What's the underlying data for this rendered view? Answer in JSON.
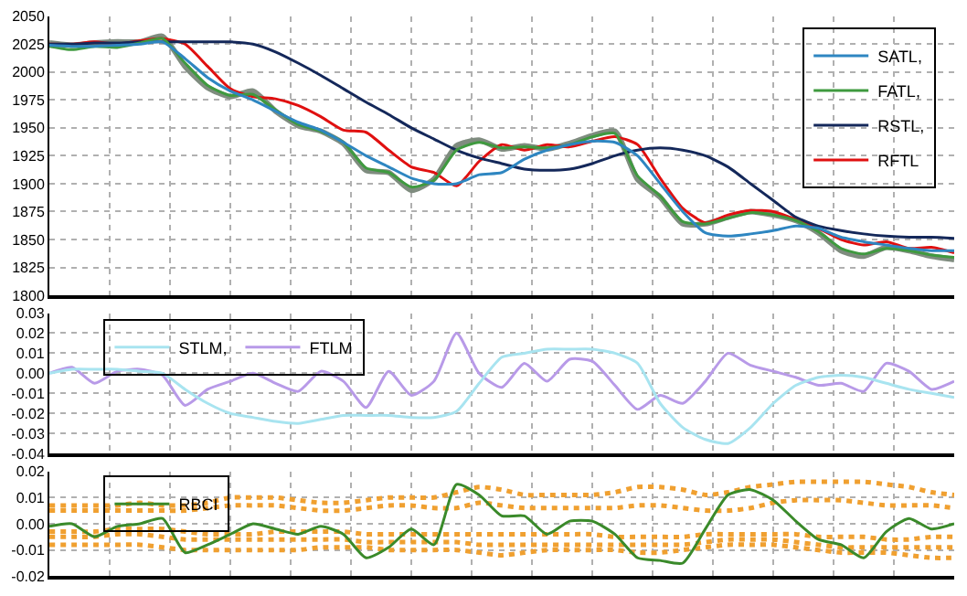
{
  "chart_data": [
    {
      "type": "line",
      "categories": [
        null,
        null,
        null,
        null,
        null,
        null,
        null,
        null,
        null,
        null,
        null,
        null,
        null,
        null,
        null,
        null,
        null,
        null,
        null,
        null,
        null,
        null,
        null,
        null,
        null,
        null,
        null,
        null,
        null,
        null,
        null,
        null,
        null,
        null,
        null,
        null,
        null,
        null,
        null,
        null,
        null
      ],
      "ylim": [
        1800,
        2050
      ],
      "yticks": [
        1800,
        1825,
        1850,
        1875,
        1900,
        1925,
        1950,
        1975,
        2000,
        2025,
        2050
      ],
      "grid": true,
      "legend": "top right",
      "tick_labels": "y",
      "series": [
        {
          "color": "#7f8c7f",
          "values": [
            2026,
            2024,
            2026,
            2027,
            2027,
            2032,
            2005,
            1986,
            1978,
            1983,
            1965,
            1952,
            1947,
            1936,
            1912,
            1910,
            1894,
            1904,
            1934,
            1939,
            1931,
            1934,
            1931,
            1936,
            1943,
            1947,
            1904,
            1888,
            1864,
            1864,
            1870,
            1875,
            1872,
            1867,
            1856,
            1840,
            1835,
            1843,
            1840,
            1835,
            1832
          ]
        },
        {
          "name": "SATL,",
          "color": "#2e86c1",
          "values": [
            2024,
            2023,
            2023,
            2024,
            2025,
            2027,
            2012,
            1995,
            1983,
            1975,
            1965,
            1955,
            1948,
            1937,
            1925,
            1915,
            1905,
            1900,
            1900,
            1908,
            1910,
            1922,
            1930,
            1935,
            1938,
            1937,
            1925,
            1900,
            1875,
            1856,
            1853,
            1855,
            1858,
            1862,
            1860,
            1852,
            1848,
            1845,
            1842,
            1840,
            1840
          ]
        },
        {
          "name": "FATL,",
          "color": "#3f9a3f",
          "values": [
            2023,
            2020,
            2023,
            2022,
            2026,
            2030,
            2008,
            1988,
            1979,
            1980,
            1966,
            1953,
            1947,
            1937,
            1914,
            1910,
            1897,
            1903,
            1930,
            1937,
            1932,
            1933,
            1932,
            1935,
            1942,
            1945,
            1907,
            1889,
            1866,
            1864,
            1869,
            1874,
            1872,
            1867,
            1857,
            1842,
            1837,
            1842,
            1840,
            1836,
            1834
          ]
        },
        {
          "name": "RSTL,",
          "color": "#14285a",
          "values": [
            2025,
            2025,
            2026,
            2026,
            2027,
            2027,
            2027,
            2027,
            2027,
            2025,
            2018,
            2008,
            1997,
            1985,
            1973,
            1962,
            1950,
            1940,
            1930,
            1923,
            1918,
            1913,
            1912,
            1913,
            1918,
            1925,
            1930,
            1932,
            1930,
            1925,
            1915,
            1900,
            1885,
            1870,
            1862,
            1858,
            1855,
            1853,
            1852,
            1852,
            1851
          ]
        },
        {
          "name": "RFTL",
          "color": "#e01010",
          "values": [
            2025,
            2025,
            2027,
            2025,
            2028,
            2030,
            2025,
            2005,
            1985,
            1978,
            1976,
            1970,
            1960,
            1948,
            1946,
            1930,
            1915,
            1910,
            1898,
            1920,
            1935,
            1930,
            1935,
            1933,
            1938,
            1942,
            1935,
            1905,
            1878,
            1865,
            1872,
            1876,
            1875,
            1868,
            1860,
            1850,
            1845,
            1848,
            1842,
            1843,
            1838
          ]
        }
      ]
    },
    {
      "type": "line",
      "categories": [
        null,
        null,
        null,
        null,
        null,
        null,
        null,
        null,
        null,
        null,
        null,
        null,
        null,
        null,
        null,
        null,
        null,
        null,
        null,
        null,
        null,
        null,
        null,
        null,
        null,
        null,
        null,
        null,
        null,
        null,
        null,
        null,
        null,
        null,
        null,
        null,
        null,
        null,
        null,
        null,
        null
      ],
      "ylim": [
        -0.04,
        0.03
      ],
      "yticks": [
        {
          "value": -0.04,
          "label": "-0.04"
        },
        {
          "value": -0.03,
          "label": "-0.03"
        },
        {
          "value": -0.02,
          "label": "-0.02"
        },
        {
          "value": -0.01,
          "label": "-0.01"
        },
        {
          "value": 0,
          "label": "0.00"
        },
        {
          "value": 0.01,
          "label": "0.01"
        },
        {
          "value": 0.02,
          "label": "0.02"
        },
        {
          "value": 0.03,
          "label": "0.03"
        }
      ],
      "grid": true,
      "legend": "top left",
      "tick_labels": "y",
      "series": [
        {
          "name": "STLM,",
          "color": "#a8e4f0",
          "values": [
            0.0,
            0.002,
            0.002,
            0.002,
            0.001,
            0.0,
            -0.008,
            -0.015,
            -0.02,
            -0.022,
            -0.024,
            -0.025,
            -0.023,
            -0.021,
            -0.021,
            -0.021,
            -0.022,
            -0.022,
            -0.019,
            -0.005,
            0.008,
            0.01,
            0.012,
            0.012,
            0.012,
            0.01,
            0.005,
            -0.015,
            -0.027,
            -0.033,
            -0.035,
            -0.027,
            -0.015,
            -0.006,
            -0.002,
            -0.001,
            -0.002,
            -0.005,
            -0.008,
            -0.01,
            -0.012
          ]
        },
        {
          "name": "FTLM",
          "color": "#b89ae8",
          "values": [
            0.0,
            0.003,
            -0.005,
            0.001,
            0.002,
            -0.001,
            -0.016,
            -0.008,
            -0.004,
            0.0,
            -0.005,
            -0.009,
            0.001,
            -0.004,
            -0.017,
            0.001,
            -0.011,
            -0.004,
            0.02,
            0.0,
            -0.007,
            0.005,
            -0.004,
            0.007,
            0.006,
            -0.006,
            -0.018,
            -0.011,
            -0.015,
            -0.004,
            0.01,
            0.004,
            0.001,
            -0.002,
            -0.006,
            -0.005,
            -0.009,
            0.005,
            0.001,
            -0.008,
            -0.004
          ]
        }
      ]
    },
    {
      "type": "line",
      "categories": [
        null,
        null,
        null,
        null,
        null,
        null,
        null,
        null,
        null,
        null,
        null,
        null,
        null,
        null,
        null,
        null,
        null,
        null,
        null,
        null,
        null,
        null,
        null,
        null,
        null,
        null,
        null,
        null,
        null,
        null,
        null,
        null,
        null,
        null,
        null,
        null,
        null,
        null,
        null,
        null,
        null
      ],
      "ylim": [
        -0.02,
        0.02
      ],
      "yticks": [
        {
          "value": -0.02,
          "label": "-0.02"
        },
        {
          "value": -0.01,
          "label": "-0.01"
        },
        {
          "value": 0,
          "label": "0.00"
        },
        {
          "value": 0.01,
          "label": "0.01"
        },
        {
          "value": 0.02,
          "label": "0.02"
        }
      ],
      "grid": true,
      "legend": "top left",
      "tick_labels": "y",
      "series": [
        {
          "color": "#f0a030",
          "line_style": "dotted",
          "values": [
            0.007,
            0.007,
            0.007,
            0.007,
            0.008,
            0.007,
            0.007,
            0.008,
            0.01,
            0.01,
            0.01,
            0.009,
            0.008,
            0.008,
            0.009,
            0.01,
            0.01,
            0.01,
            0.012,
            0.014,
            0.013,
            0.011,
            0.011,
            0.011,
            0.011,
            0.012,
            0.014,
            0.014,
            0.013,
            0.011,
            0.012,
            0.014,
            0.015,
            0.016,
            0.016,
            0.016,
            0.016,
            0.015,
            0.014,
            0.012,
            0.011
          ]
        },
        {
          "color": "#f0a030",
          "line_style": "dotted",
          "values": [
            0.005,
            0.005,
            0.005,
            0.005,
            0.005,
            0.005,
            0.005,
            0.006,
            0.007,
            0.007,
            0.007,
            0.006,
            0.005,
            0.005,
            0.006,
            0.007,
            0.007,
            0.006,
            0.006,
            0.008,
            0.007,
            0.006,
            0.006,
            0.006,
            0.006,
            0.006,
            0.007,
            0.007,
            0.006,
            0.005,
            0.005,
            0.006,
            0.008,
            0.009,
            0.009,
            0.009,
            0.008,
            0.007,
            0.007,
            0.007,
            0.006
          ]
        },
        {
          "color": "#f0a030",
          "line_style": "dotted",
          "values": [
            -0.003,
            -0.003,
            -0.003,
            -0.002,
            -0.002,
            -0.002,
            -0.003,
            -0.004,
            -0.004,
            -0.004,
            -0.003,
            -0.003,
            -0.003,
            -0.003,
            -0.004,
            -0.004,
            -0.004,
            -0.004,
            -0.004,
            -0.004,
            -0.004,
            -0.004,
            -0.004,
            -0.004,
            -0.004,
            -0.005,
            -0.005,
            -0.005,
            -0.005,
            -0.004,
            -0.004,
            -0.004,
            -0.004,
            -0.004,
            -0.005,
            -0.005,
            -0.005,
            -0.006,
            -0.006,
            -0.005,
            -0.005
          ]
        },
        {
          "color": "#f0a030",
          "line_style": "dotted",
          "values": [
            -0.005,
            -0.005,
            -0.005,
            -0.004,
            -0.004,
            -0.005,
            -0.006,
            -0.006,
            -0.006,
            -0.006,
            -0.006,
            -0.006,
            -0.006,
            -0.006,
            -0.007,
            -0.007,
            -0.007,
            -0.007,
            -0.007,
            -0.008,
            -0.008,
            -0.008,
            -0.008,
            -0.008,
            -0.008,
            -0.008,
            -0.008,
            -0.008,
            -0.008,
            -0.007,
            -0.006,
            -0.006,
            -0.006,
            -0.007,
            -0.008,
            -0.009,
            -0.009,
            -0.009,
            -0.009,
            -0.009,
            -0.009
          ]
        },
        {
          "color": "#f0a030",
          "line_style": "dotted",
          "values": [
            -0.008,
            -0.008,
            -0.008,
            -0.008,
            -0.008,
            -0.009,
            -0.01,
            -0.01,
            -0.01,
            -0.01,
            -0.01,
            -0.01,
            -0.009,
            -0.009,
            -0.009,
            -0.01,
            -0.01,
            -0.01,
            -0.01,
            -0.011,
            -0.012,
            -0.011,
            -0.01,
            -0.01,
            -0.01,
            -0.01,
            -0.011,
            -0.011,
            -0.01,
            -0.009,
            -0.008,
            -0.008,
            -0.008,
            -0.009,
            -0.01,
            -0.011,
            -0.011,
            -0.011,
            -0.012,
            -0.013,
            -0.013
          ]
        },
        {
          "name": "RBCI",
          "color": "#3a8a2a",
          "values": [
            -0.001,
            0.0,
            -0.005,
            -0.001,
            0.0,
            0.002,
            -0.011,
            -0.008,
            -0.004,
            0.0,
            -0.002,
            -0.004,
            -0.001,
            -0.004,
            -0.013,
            -0.009,
            -0.002,
            -0.008,
            0.015,
            0.011,
            0.003,
            0.003,
            -0.004,
            0.001,
            0.001,
            -0.004,
            -0.013,
            -0.014,
            -0.015,
            -0.002,
            0.011,
            0.013,
            0.009,
            0.001,
            -0.006,
            -0.008,
            -0.013,
            -0.003,
            0.002,
            -0.002,
            0.0
          ]
        }
      ]
    }
  ]
}
